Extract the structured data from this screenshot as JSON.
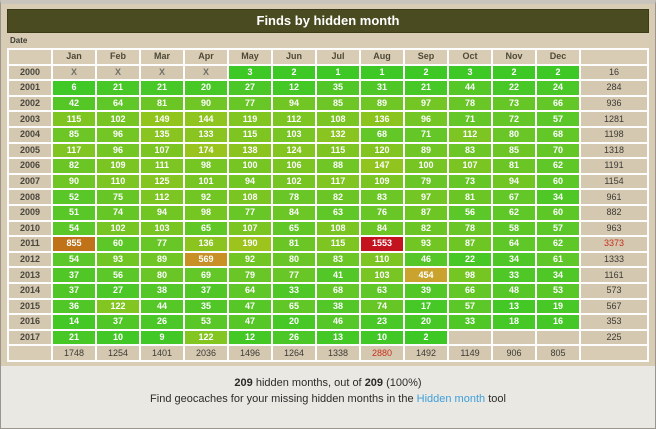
{
  "title": "Finds by hidden month",
  "date_label": "Date",
  "months": [
    "Jan",
    "Feb",
    "Mar",
    "Apr",
    "May",
    "Jun",
    "Jul",
    "Aug",
    "Sep",
    "Oct",
    "Nov",
    "Dec"
  ],
  "rows": [
    {
      "year": "2000",
      "cells": [
        "X",
        "X",
        "X",
        "X",
        "3",
        "2",
        "1",
        "1",
        "2",
        "3",
        "2",
        "2"
      ],
      "total": "16",
      "total_red": false
    },
    {
      "year": "2001",
      "cells": [
        "6",
        "21",
        "21",
        "20",
        "27",
        "12",
        "35",
        "31",
        "21",
        "44",
        "22",
        "24"
      ],
      "total": "284",
      "total_red": false
    },
    {
      "year": "2002",
      "cells": [
        "42",
        "64",
        "81",
        "90",
        "77",
        "94",
        "85",
        "89",
        "97",
        "78",
        "73",
        "66"
      ],
      "total": "936",
      "total_red": false
    },
    {
      "year": "2003",
      "cells": [
        "115",
        "102",
        "149",
        "144",
        "119",
        "112",
        "108",
        "136",
        "96",
        "71",
        "72",
        "57"
      ],
      "total": "1281",
      "total_red": false
    },
    {
      "year": "2004",
      "cells": [
        "85",
        "96",
        "135",
        "133",
        "115",
        "103",
        "132",
        "68",
        "71",
        "112",
        "80",
        "68"
      ],
      "total": "1198",
      "total_red": false
    },
    {
      "year": "2005",
      "cells": [
        "117",
        "96",
        "107",
        "174",
        "138",
        "124",
        "115",
        "120",
        "89",
        "83",
        "85",
        "70"
      ],
      "total": "1318",
      "total_red": false
    },
    {
      "year": "2006",
      "cells": [
        "82",
        "109",
        "111",
        "98",
        "100",
        "106",
        "88",
        "147",
        "100",
        "107",
        "81",
        "62"
      ],
      "total": "1191",
      "total_red": false
    },
    {
      "year": "2007",
      "cells": [
        "90",
        "110",
        "125",
        "101",
        "94",
        "102",
        "117",
        "109",
        "79",
        "73",
        "94",
        "60"
      ],
      "total": "1154",
      "total_red": false
    },
    {
      "year": "2008",
      "cells": [
        "52",
        "75",
        "112",
        "92",
        "108",
        "78",
        "82",
        "83",
        "97",
        "81",
        "67",
        "34"
      ],
      "total": "961",
      "total_red": false
    },
    {
      "year": "2009",
      "cells": [
        "51",
        "74",
        "94",
        "98",
        "77",
        "84",
        "63",
        "76",
        "87",
        "56",
        "62",
        "60"
      ],
      "total": "882",
      "total_red": false
    },
    {
      "year": "2010",
      "cells": [
        "54",
        "102",
        "103",
        "65",
        "107",
        "65",
        "108",
        "84",
        "82",
        "78",
        "58",
        "57"
      ],
      "total": "963",
      "total_red": false
    },
    {
      "year": "2011",
      "cells": [
        "855",
        "60",
        "77",
        "136",
        "190",
        "81",
        "115",
        "1553",
        "93",
        "87",
        "64",
        "62"
      ],
      "total": "3373",
      "total_red": true
    },
    {
      "year": "2012",
      "cells": [
        "54",
        "93",
        "89",
        "569",
        "92",
        "80",
        "83",
        "110",
        "46",
        "22",
        "34",
        "61"
      ],
      "total": "1333",
      "total_red": false
    },
    {
      "year": "2013",
      "cells": [
        "37",
        "56",
        "80",
        "69",
        "79",
        "77",
        "41",
        "103",
        "454",
        "98",
        "33",
        "34"
      ],
      "total": "1161",
      "total_red": false
    },
    {
      "year": "2014",
      "cells": [
        "37",
        "27",
        "38",
        "37",
        "64",
        "33",
        "68",
        "63",
        "39",
        "66",
        "48",
        "53"
      ],
      "total": "573",
      "total_red": false
    },
    {
      "year": "2015",
      "cells": [
        "36",
        "122",
        "44",
        "35",
        "47",
        "65",
        "38",
        "74",
        "17",
        "57",
        "13",
        "19"
      ],
      "total": "567",
      "total_red": false
    },
    {
      "year": "2016",
      "cells": [
        "14",
        "37",
        "26",
        "53",
        "47",
        "20",
        "46",
        "23",
        "20",
        "33",
        "18",
        "16"
      ],
      "total": "353",
      "total_red": false
    },
    {
      "year": "2017",
      "cells": [
        "21",
        "10",
        "9",
        "122",
        "12",
        "26",
        "13",
        "10",
        "2",
        "",
        "",
        ""
      ],
      "total": "225",
      "total_red": false
    }
  ],
  "column_totals": [
    "1748",
    "1254",
    "1401",
    "2036",
    "1496",
    "1264",
    "1338",
    "2880",
    "1492",
    "1149",
    "906",
    "805"
  ],
  "column_totals_red_idx": 7,
  "footer": {
    "count_bold_1": "209",
    "line1_mid": " hidden months, out of ",
    "count_bold_2": "209",
    "line1_end": " (100%)",
    "line2_pre": "Find geocaches for your missing hidden months in the ",
    "link_label": "Hidden month",
    "line2_post": " tool"
  },
  "colors": {
    "header_bg": "#4a4b20",
    "panel_beige": "#d9ccb5",
    "red_text": "#c5301c",
    "link_blue": "#3f9fdb",
    "heat_scale": [
      {
        "v": 0,
        "c": "#3cc826"
      },
      {
        "v": 60,
        "c": "#5ec728"
      },
      {
        "v": 110,
        "c": "#7cc522"
      },
      {
        "v": 150,
        "c": "#93c41e"
      },
      {
        "v": 210,
        "c": "#a2c41c"
      },
      {
        "v": 450,
        "c": "#c9a42e"
      },
      {
        "v": 580,
        "c": "#c98e24"
      },
      {
        "v": 860,
        "c": "#bf7117"
      },
      {
        "v": 1550,
        "c": "#c2131f"
      }
    ]
  },
  "chart_data": {
    "type": "heatmap",
    "title": "Finds by hidden month",
    "x_categories": [
      "Jan",
      "Feb",
      "Mar",
      "Apr",
      "May",
      "Jun",
      "Jul",
      "Aug",
      "Sep",
      "Oct",
      "Nov",
      "Dec"
    ],
    "y_categories": [
      "2000",
      "2001",
      "2002",
      "2003",
      "2004",
      "2005",
      "2006",
      "2007",
      "2008",
      "2009",
      "2010",
      "2011",
      "2012",
      "2013",
      "2014",
      "2015",
      "2016",
      "2017"
    ],
    "values": [
      [
        null,
        null,
        null,
        null,
        3,
        2,
        1,
        1,
        2,
        3,
        2,
        2
      ],
      [
        6,
        21,
        21,
        20,
        27,
        12,
        35,
        31,
        21,
        44,
        22,
        24
      ],
      [
        42,
        64,
        81,
        90,
        77,
        94,
        85,
        89,
        97,
        78,
        73,
        66
      ],
      [
        115,
        102,
        149,
        144,
        119,
        112,
        108,
        136,
        96,
        71,
        72,
        57
      ],
      [
        85,
        96,
        135,
        133,
        115,
        103,
        132,
        68,
        71,
        112,
        80,
        68
      ],
      [
        117,
        96,
        107,
        174,
        138,
        124,
        115,
        120,
        89,
        83,
        85,
        70
      ],
      [
        82,
        109,
        111,
        98,
        100,
        106,
        88,
        147,
        100,
        107,
        81,
        62
      ],
      [
        90,
        110,
        125,
        101,
        94,
        102,
        117,
        109,
        79,
        73,
        94,
        60
      ],
      [
        52,
        75,
        112,
        92,
        108,
        78,
        82,
        83,
        97,
        81,
        67,
        34
      ],
      [
        51,
        74,
        94,
        98,
        77,
        84,
        63,
        76,
        87,
        56,
        62,
        60
      ],
      [
        54,
        102,
        103,
        65,
        107,
        65,
        108,
        84,
        82,
        78,
        58,
        57
      ],
      [
        855,
        60,
        77,
        136,
        190,
        81,
        115,
        1553,
        93,
        87,
        64,
        62
      ],
      [
        54,
        93,
        89,
        569,
        92,
        80,
        83,
        110,
        46,
        22,
        34,
        61
      ],
      [
        37,
        56,
        80,
        69,
        79,
        77,
        41,
        103,
        454,
        98,
        33,
        34
      ],
      [
        37,
        27,
        38,
        37,
        64,
        33,
        68,
        63,
        39,
        66,
        48,
        53
      ],
      [
        36,
        122,
        44,
        35,
        47,
        65,
        38,
        74,
        17,
        57,
        13,
        19
      ],
      [
        14,
        37,
        26,
        53,
        47,
        20,
        46,
        23,
        20,
        33,
        18,
        16
      ],
      [
        21,
        10,
        9,
        122,
        12,
        26,
        13,
        10,
        2,
        null,
        null,
        null
      ]
    ],
    "row_totals": [
      16,
      284,
      936,
      1281,
      1198,
      1318,
      1191,
      1154,
      961,
      882,
      963,
      3373,
      1333,
      1161,
      573,
      567,
      353,
      225
    ],
    "column_totals": [
      1748,
      1254,
      1401,
      2036,
      1496,
      1264,
      1338,
      2880,
      1492,
      1149,
      906,
      805
    ],
    "legend": "color scale green(low) -> yellow -> orange -> red(high)",
    "notes": "X = month before player start; 209 hidden months out of 209 (100%)"
  }
}
